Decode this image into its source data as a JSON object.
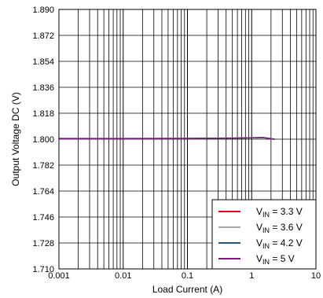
{
  "chart_data": {
    "type": "line",
    "title": "",
    "xlabel": "Load Current (A)",
    "ylabel": "Output Voltage DC (V)",
    "x_scale": "log",
    "xlim": [
      0.001,
      10
    ],
    "ylim": [
      1.71,
      1.89
    ],
    "x_ticks": [
      {
        "value": 0.001,
        "label": "0.001"
      },
      {
        "value": 0.01,
        "label": "0.01"
      },
      {
        "value": 0.1,
        "label": "0.1"
      },
      {
        "value": 1,
        "label": "1"
      },
      {
        "value": 10,
        "label": "10"
      }
    ],
    "y_ticks": [
      {
        "value": 1.71,
        "label": "1.710"
      },
      {
        "value": 1.728,
        "label": "1.728"
      },
      {
        "value": 1.746,
        "label": "1.746"
      },
      {
        "value": 1.764,
        "label": "1.764"
      },
      {
        "value": 1.782,
        "label": "1.782"
      },
      {
        "value": 1.8,
        "label": "1.800"
      },
      {
        "value": 1.818,
        "label": "1.818"
      },
      {
        "value": 1.836,
        "label": "1.836"
      },
      {
        "value": 1.854,
        "label": "1.854"
      },
      {
        "value": 1.872,
        "label": "1.872"
      },
      {
        "value": 1.89,
        "label": "1.890"
      }
    ],
    "grid": true,
    "legend_position": "bottom-right",
    "series": [
      {
        "name_main": "V",
        "name_sub": "IN",
        "name_rest": " = 3.3 V",
        "color": "#e8001c",
        "x": [
          0.001,
          0.01,
          0.1,
          0.5,
          1,
          1.5,
          2
        ],
        "y": [
          1.8005,
          1.8005,
          1.8006,
          1.8008,
          1.801,
          1.8012,
          1.8002
        ]
      },
      {
        "name_main": "V",
        "name_sub": "IN",
        "name_rest": " = 3.6 V",
        "color": "#a6a6a6",
        "x": [
          0.001,
          0.01,
          0.1,
          0.5,
          1,
          1.5,
          2.2
        ],
        "y": [
          1.8005,
          1.8005,
          1.8006,
          1.8008,
          1.801,
          1.8012,
          1.8003
        ]
      },
      {
        "name_main": "V",
        "name_sub": "IN",
        "name_rest": " = 4.2 V",
        "color": "#1f5b73",
        "x": [
          0.001,
          0.01,
          0.1,
          0.5,
          1,
          1.5,
          2.3
        ],
        "y": [
          1.8004,
          1.8004,
          1.8005,
          1.8007,
          1.8009,
          1.8011,
          1.8
        ]
      },
      {
        "name_main": "V",
        "name_sub": "IN",
        "name_rest": " = 5 V",
        "color": "#7a1a7a",
        "x": [
          0.001,
          0.01,
          0.1,
          0.5,
          1,
          1.5,
          2.3
        ],
        "y": [
          1.8004,
          1.8004,
          1.8005,
          1.8007,
          1.8009,
          1.8011,
          1.7998
        ]
      }
    ]
  }
}
